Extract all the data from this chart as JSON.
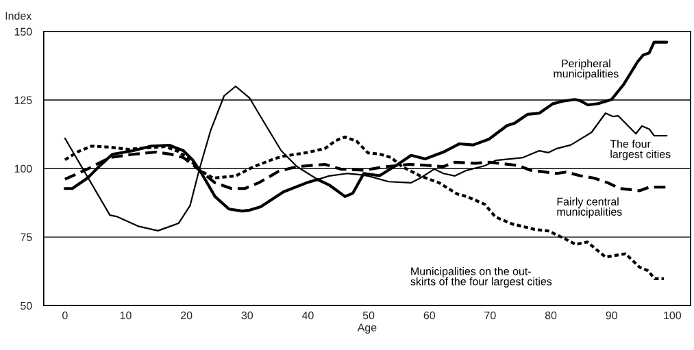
{
  "chart_data": {
    "type": "line",
    "xlabel": "Age",
    "ylabel": "Index",
    "xlim": [
      -3.5,
      103
    ],
    "xticks": [
      0,
      10,
      20,
      30,
      40,
      50,
      60,
      70,
      80,
      90,
      100
    ],
    "ylim": [
      50,
      150
    ],
    "yticks": [
      50,
      75,
      100,
      125,
      150
    ],
    "grid": "y",
    "legend": false,
    "series": [
      {
        "name": "Peripheral\nmunicipalities",
        "color": "#000000",
        "line_style": "solid",
        "x": [
          0,
          1.2,
          3.7,
          5.6,
          7.8,
          11.2,
          14.2,
          17.2,
          19.5,
          21,
          22.5,
          24.7,
          27,
          29.2,
          30.4,
          32.2,
          36,
          39.8,
          41.6,
          43.5,
          46.1,
          47.4,
          49.2,
          51.8,
          54.8,
          57,
          59.3,
          62.3,
          64.9,
          67.2,
          69.8,
          72.8,
          74,
          76.2,
          78.1,
          80.3,
          81.8,
          83.9,
          84.8,
          86.1,
          87.8,
          90,
          90.9,
          92,
          94.3,
          95.2,
          96.2,
          97,
          99.1
        ],
        "values": [
          92.7,
          92.7,
          96.5,
          100.7,
          105.2,
          106.5,
          108.2,
          108.5,
          106.5,
          103.2,
          98.2,
          89.8,
          85.2,
          84.5,
          84.8,
          86,
          91.5,
          94.8,
          96,
          94,
          89.8,
          91,
          98.2,
          97.4,
          101.5,
          104.8,
          103.5,
          106,
          109,
          108.6,
          110.7,
          115.7,
          116.5,
          119.8,
          120.2,
          123.6,
          124.5,
          125.2,
          124.8,
          123.2,
          123.7,
          125.2,
          127.7,
          130.7,
          139,
          141.4,
          142.2,
          146.1,
          146.1
        ]
      },
      {
        "name": "The four\nlargest cities",
        "color": "#000000",
        "line_style": "solid",
        "x": [
          0,
          7.4,
          8.5,
          12,
          15.3,
          18.7,
          20.6,
          22.1,
          24,
          26.2,
          28.1,
          30.4,
          32.2,
          35.6,
          38.2,
          41.6,
          43.5,
          46.5,
          48.4,
          49.9,
          53.3,
          57,
          58.5,
          60.8,
          62.3,
          64.2,
          66.1,
          69.1,
          71,
          75.4,
          78.1,
          79.6,
          81,
          83.3,
          86.7,
          89,
          90.2,
          91.1,
          92.3,
          94,
          95,
          96.2,
          97,
          99.1
        ],
        "values": [
          111,
          83,
          82.5,
          79,
          77.3,
          80,
          86.5,
          99.5,
          114,
          126.5,
          130,
          125.7,
          119,
          106.5,
          100.7,
          96,
          97.3,
          98.2,
          97.8,
          97.3,
          95.2,
          94.8,
          96.5,
          99.8,
          98.2,
          97.3,
          99.3,
          101,
          103,
          104,
          106.5,
          105.8,
          107.3,
          108.6,
          113.2,
          120.2,
          119,
          119.2,
          116.5,
          112.7,
          115.5,
          114.4,
          112,
          112
        ]
      },
      {
        "name": "Fairly central\nmunicipalities",
        "color": "#000000",
        "line_style": "dashed",
        "x": [
          0,
          3.7,
          7.4,
          11.2,
          15,
          17.2,
          19.5,
          22.1,
          24.7,
          27.4,
          29.6,
          31.9,
          35.2,
          38.2,
          42.8,
          45.4,
          49.2,
          52.9,
          56.7,
          59.3,
          62.3,
          64.2,
          67.6,
          69.8,
          74.7,
          76.6,
          81,
          82.5,
          84.8,
          87.1,
          89.4,
          91.3,
          93.2,
          94.6,
          96.2,
          99.1
        ],
        "values": [
          96.1,
          99.8,
          104,
          105.2,
          106,
          105.3,
          104,
          99.5,
          94.8,
          92.7,
          92.7,
          94.8,
          99,
          100.7,
          101.5,
          99.8,
          99.4,
          100.7,
          101.5,
          101.2,
          100.7,
          102.3,
          101.9,
          102.3,
          101.1,
          99.4,
          98.2,
          98.7,
          97.4,
          96.5,
          94.8,
          92.7,
          92.3,
          91.9,
          93.2,
          93.2
        ]
      },
      {
        "name": "Municipalities on the out-\nskirts of the four largest cities",
        "color": "#000000",
        "line_style": "dotted",
        "x": [
          0,
          2.2,
          4.4,
          7.4,
          10.5,
          13,
          16.5,
          18.7,
          20.6,
          22.1,
          24.4,
          28.1,
          31.1,
          34.5,
          36,
          39.8,
          42.8,
          44.6,
          46.1,
          48,
          49.9,
          51.8,
          53.7,
          55.5,
          58.5,
          61.6,
          64.6,
          66.1,
          69.1,
          70.9,
          73.6,
          77.3,
          79.6,
          82.2,
          84.1,
          86,
          89,
          92.3,
          94.6,
          96,
          97.1,
          98.6
        ],
        "values": [
          103.2,
          106.2,
          108.2,
          107.8,
          107,
          107.5,
          108,
          106.2,
          103.2,
          99.5,
          96.5,
          97.3,
          100.7,
          103.6,
          104.5,
          105.8,
          107.3,
          110.2,
          111.5,
          110,
          105.7,
          105.3,
          104,
          100.7,
          97.3,
          94.8,
          90.7,
          89.8,
          87,
          82.3,
          79.8,
          77.8,
          77.2,
          74.5,
          72.3,
          73.2,
          67.7,
          68.9,
          64,
          62.7,
          59.8,
          59.8
        ]
      }
    ]
  }
}
